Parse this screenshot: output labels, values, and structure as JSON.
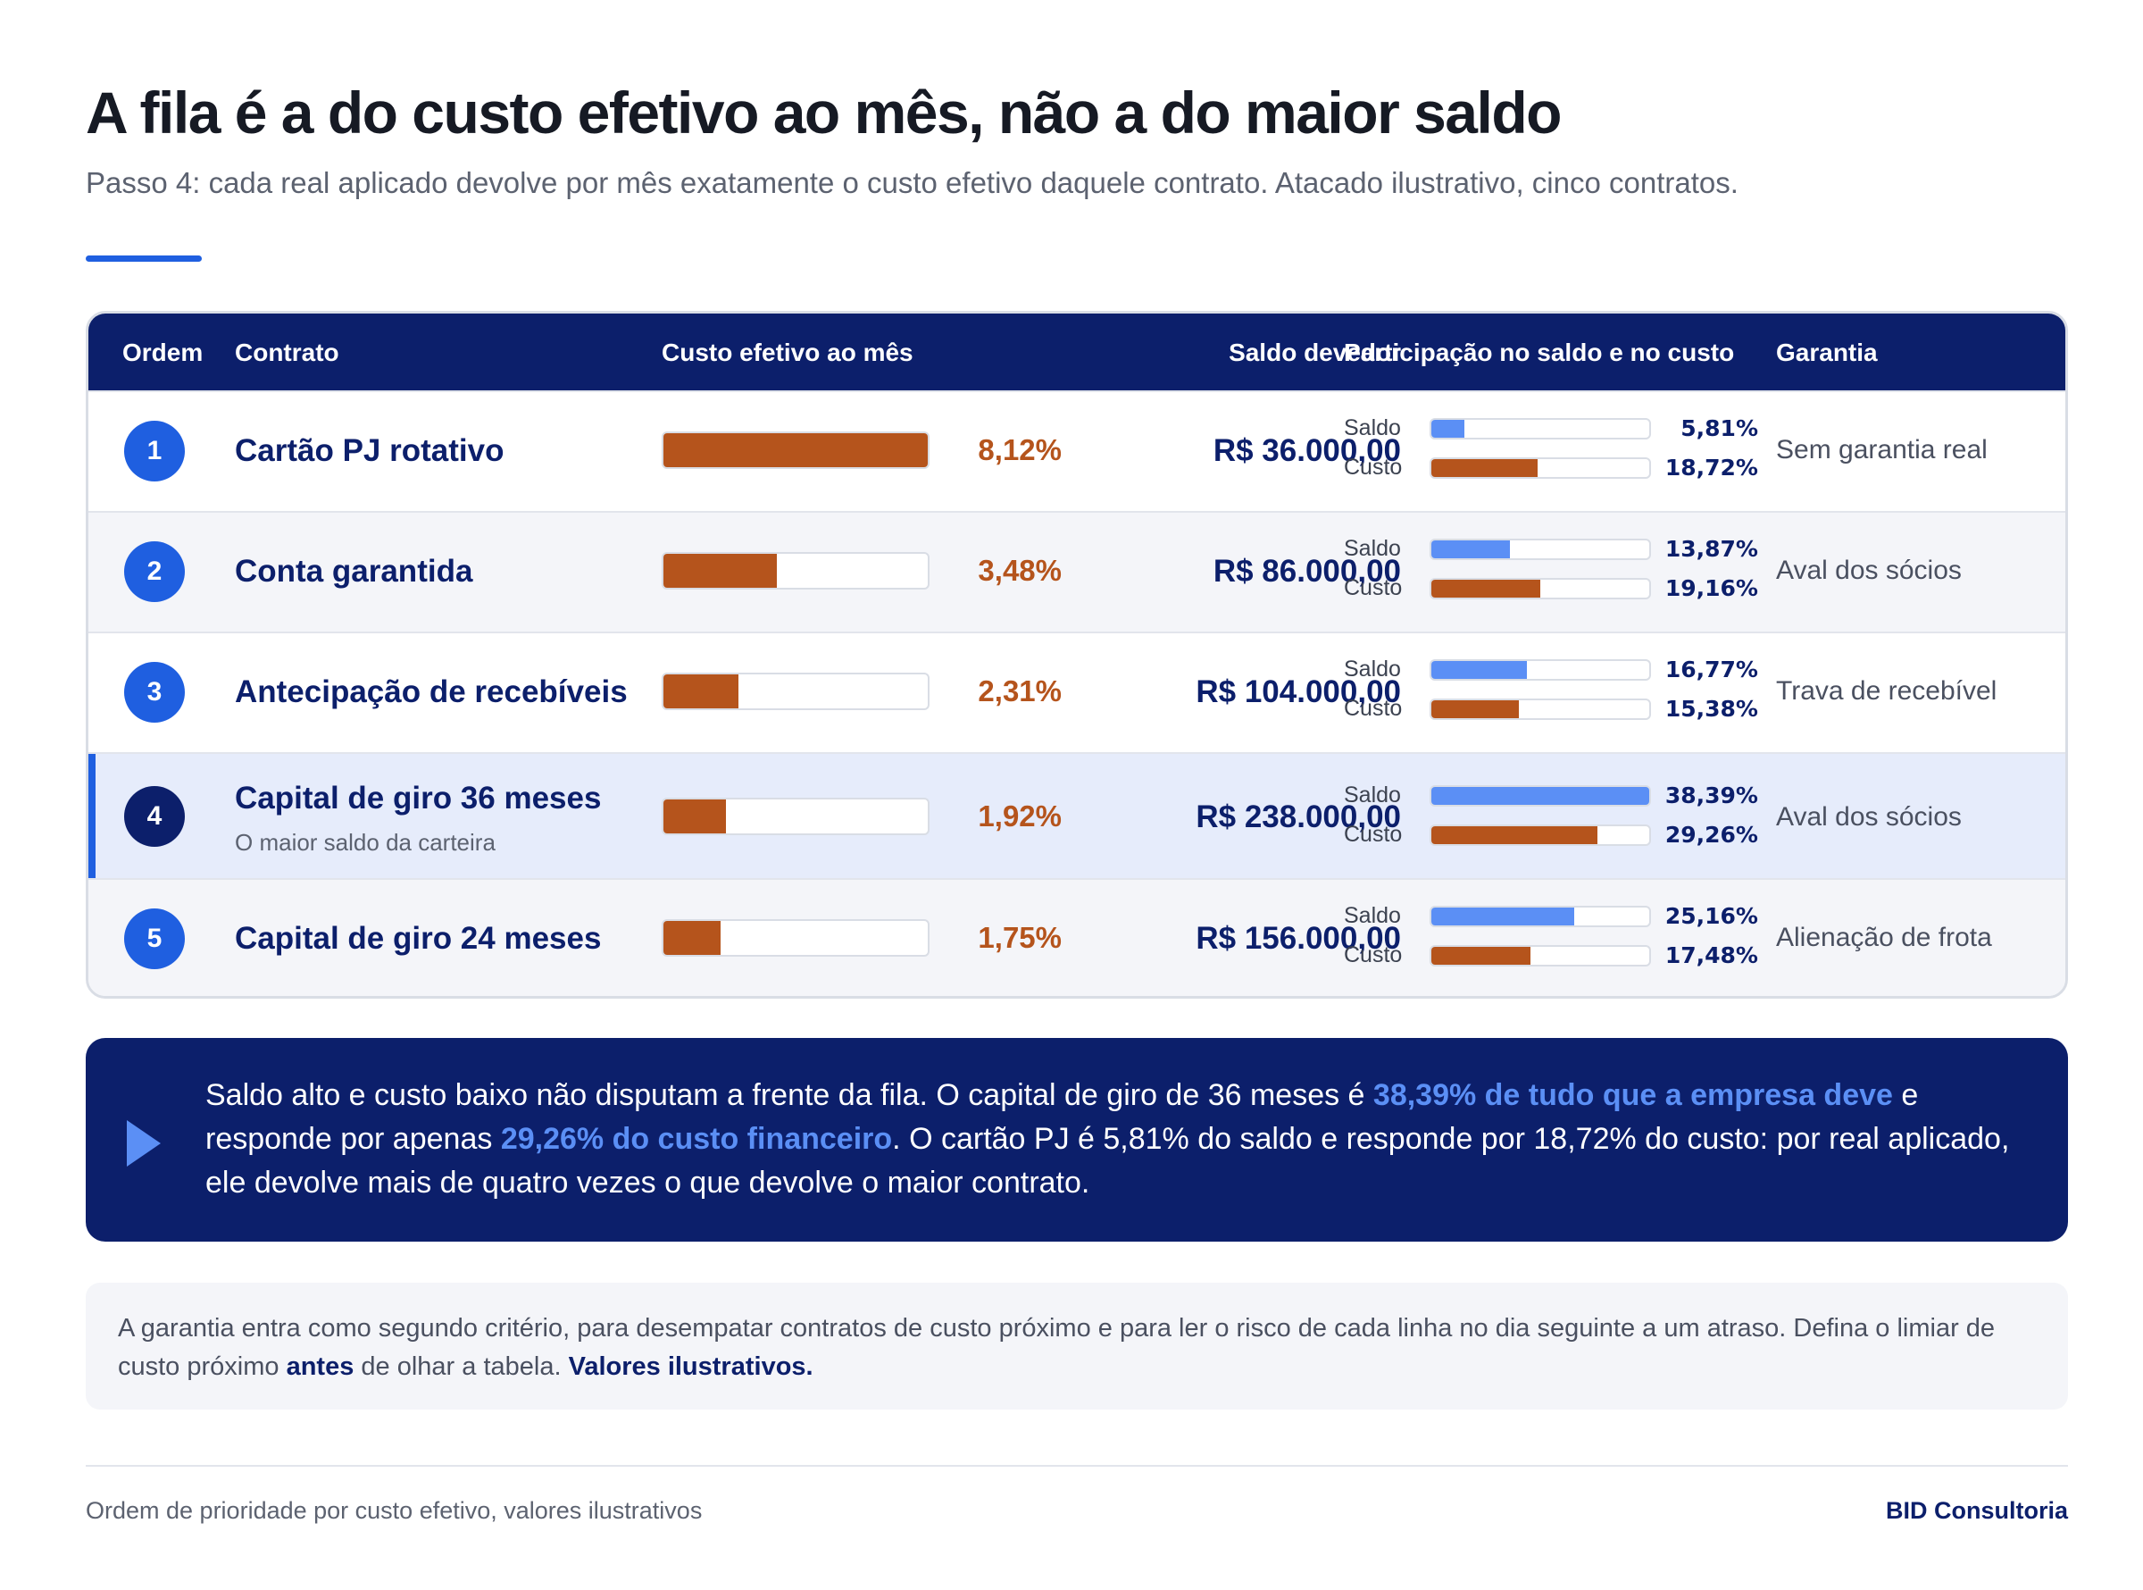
{
  "title": "A fila é a do custo efetivo ao mês, não a do maior saldo",
  "subtitle": "Passo 4: cada real aplicado devolve por mês exatamente o custo efetivo daquele contrato. Atacado ilustrativo, cinco contratos.",
  "colors": {
    "navy": "#0c1f6b",
    "accent_blue": "#1f5fe0",
    "saldo_bar": "#5b8ff5",
    "custo_bar": "#b5541c"
  },
  "table": {
    "headers": {
      "ordem": "Ordem",
      "contrato": "Contrato",
      "custo": "Custo efetivo ao mês",
      "saldo": "Saldo devedor",
      "participacao": "Participação no saldo e no custo",
      "garantia": "Garantia"
    },
    "saldo_label": "Saldo",
    "custo_label": "Custo",
    "rows": [
      {
        "ordem": "1",
        "contrato": "Cartão PJ rotativo",
        "note": "",
        "custo_pct": "8,12%",
        "custo_value": 8.12,
        "saldo": "R$ 36.000,00",
        "part_saldo": "5,81%",
        "part_saldo_value": 5.81,
        "part_custo": "18,72%",
        "part_custo_value": 18.72,
        "garantia": "Sem garantia real"
      },
      {
        "ordem": "2",
        "contrato": "Conta garantida",
        "note": "",
        "custo_pct": "3,48%",
        "custo_value": 3.48,
        "saldo": "R$ 86.000,00",
        "part_saldo": "13,87%",
        "part_saldo_value": 13.87,
        "part_custo": "19,16%",
        "part_custo_value": 19.16,
        "garantia": "Aval dos sócios"
      },
      {
        "ordem": "3",
        "contrato": "Antecipação de recebíveis",
        "note": "",
        "custo_pct": "2,31%",
        "custo_value": 2.31,
        "saldo": "R$ 104.000,00",
        "part_saldo": "16,77%",
        "part_saldo_value": 16.77,
        "part_custo": "15,38%",
        "part_custo_value": 15.38,
        "garantia": "Trava de recebível"
      },
      {
        "ordem": "4",
        "contrato": "Capital de giro 36 meses",
        "note": "O maior saldo da carteira",
        "custo_pct": "1,92%",
        "custo_value": 1.92,
        "saldo": "R$ 238.000,00",
        "part_saldo": "38,39%",
        "part_saldo_value": 38.39,
        "part_custo": "29,26%",
        "part_custo_value": 29.26,
        "garantia": "Aval dos sócios"
      },
      {
        "ordem": "5",
        "contrato": "Capital de giro 24 meses",
        "note": "",
        "custo_pct": "1,75%",
        "custo_value": 1.75,
        "saldo": "R$ 156.000,00",
        "part_saldo": "25,16%",
        "part_saldo_value": 25.16,
        "part_custo": "17,48%",
        "part_custo_value": 17.48,
        "garantia": "Alienação de frota"
      }
    ]
  },
  "callout": {
    "icon": "play-icon",
    "part1": "Saldo alto e custo baixo não disputam a frente da fila. O capital de giro de 36 meses é ",
    "highlight1": "38,39% de tudo que a empresa deve",
    "part2": " e responde por apenas ",
    "highlight2": "29,26% do custo financeiro",
    "part3": ". O cartão PJ é 5,81% do saldo e responde por 18,72% do custo: por real aplicado, ele devolve mais de quatro vezes o que devolve o maior contrato."
  },
  "note": {
    "part1": "A garantia entra como segundo critério, para desempatar contratos de custo próximo e para ler o risco de cada linha no dia seguinte a um atraso. Defina o limiar de custo próximo ",
    "bold1": "antes",
    "part2": " de olhar a tabela. ",
    "bold2": "Valores ilustrativos."
  },
  "footer": {
    "left": "Ordem de prioridade por custo efetivo, valores ilustrativos",
    "right": "BID Consultoria"
  }
}
